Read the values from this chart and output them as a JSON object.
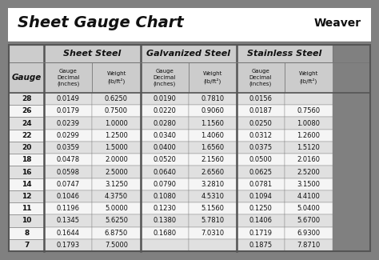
{
  "title": "Sheet Gauge Chart",
  "bg_outer": "#808080",
  "bg_inner": "#ffffff",
  "bg_header": "#cccccc",
  "bg_data_odd": "#e0e0e0",
  "bg_data_even": "#f5f5f5",
  "col_headers": [
    "Sheet Steel",
    "Galvanized Steel",
    "Stainless Steel"
  ],
  "gauges": [
    28,
    26,
    24,
    22,
    20,
    18,
    16,
    14,
    12,
    11,
    10,
    8,
    7
  ],
  "sheet_steel_decimal": [
    "0.0149",
    "0.0179",
    "0.0239",
    "0.0299",
    "0.0359",
    "0.0478",
    "0.0598",
    "0.0747",
    "0.1046",
    "0.1196",
    "0.1345",
    "0.1644",
    "0.1793"
  ],
  "sheet_steel_weight": [
    "0.6250",
    "0.7500",
    "1.0000",
    "1.2500",
    "1.5000",
    "2.0000",
    "2.5000",
    "3.1250",
    "4.3750",
    "5.0000",
    "5.6250",
    "6.8750",
    "7.5000"
  ],
  "galv_decimal": [
    "0.0190",
    "0.0220",
    "0.0280",
    "0.0340",
    "0.0400",
    "0.0520",
    "0.0640",
    "0.0790",
    "0.1080",
    "0.1230",
    "0.1380",
    "0.1680",
    ""
  ],
  "galv_weight": [
    "0.7810",
    "0.9060",
    "1.1560",
    "1.4060",
    "1.6560",
    "2.1560",
    "2.6560",
    "3.2810",
    "4.5310",
    "5.1560",
    "5.7810",
    "7.0310",
    ""
  ],
  "ss_decimal": [
    "0.0156",
    "0.0187",
    "0.0250",
    "0.0312",
    "0.0375",
    "0.0500",
    "0.0625",
    "0.0781",
    "0.1094",
    "0.1250",
    "0.1406",
    "0.1719",
    "0.1875"
  ],
  "ss_weight": [
    "",
    "0.7560",
    "1.0080",
    "1.2600",
    "1.5120",
    "2.0160",
    "2.5200",
    "3.1500",
    "4.4100",
    "5.0400",
    "5.6700",
    "6.9300",
    "7.8710"
  ]
}
